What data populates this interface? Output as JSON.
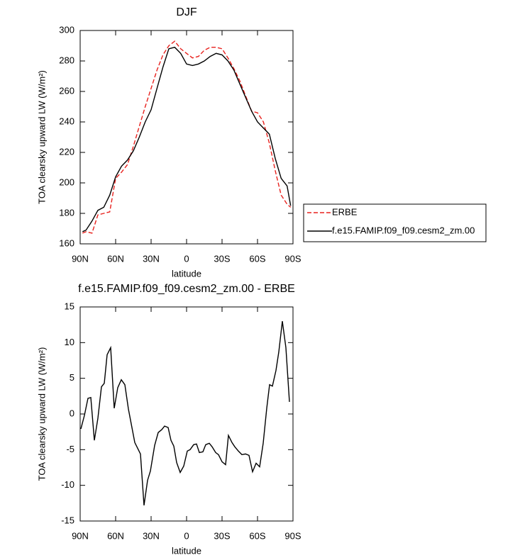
{
  "chart_data": [
    {
      "type": "line",
      "title": "DJF",
      "x_label": "latitude",
      "y_label": "TOA clearsky upward LW (W/m²)",
      "xlim": [
        90,
        -90
      ],
      "xticks": [
        {
          "value": 90,
          "label": "90N"
        },
        {
          "value": 60,
          "label": "60N"
        },
        {
          "value": 30,
          "label": "30N"
        },
        0,
        {
          "value": -30,
          "label": "30S"
        },
        {
          "value": -60,
          "label": "60S"
        },
        {
          "value": -90,
          "label": "90S"
        }
      ],
      "ylim": [
        160,
        300
      ],
      "yticks": [
        160,
        180,
        200,
        220,
        240,
        260,
        280,
        300
      ],
      "x": [
        88,
        85,
        80,
        75,
        70,
        65,
        60,
        55,
        50,
        45,
        40,
        35,
        30,
        25,
        20,
        15,
        10,
        5,
        0,
        -5,
        -10,
        -15,
        -20,
        -25,
        -30,
        -35,
        -40,
        -45,
        -50,
        -55,
        -60,
        -65,
        -70,
        -75,
        -80,
        -85,
        -88
      ],
      "legend": "right",
      "series": [
        {
          "name": "ERBE",
          "color": "#e8211d",
          "dash": true,
          "values": [
            167,
            168,
            167,
            179,
            180,
            181,
            203,
            207,
            212,
            224,
            237,
            250,
            262,
            274,
            284,
            290,
            293,
            288,
            285,
            282,
            283,
            287,
            289,
            289,
            288,
            282,
            275,
            267,
            257,
            247,
            246,
            240,
            226,
            208,
            192,
            186,
            184
          ]
        },
        {
          "name": "f.e15.FAMIP.f09_f09.cesm2_zm.00",
          "color": "#000000",
          "dash": false,
          "values": [
            168,
            169,
            175,
            182,
            184,
            192,
            204,
            211,
            215,
            221,
            230,
            240,
            248,
            262,
            276,
            288,
            289,
            285,
            278,
            277,
            278,
            280,
            283,
            285,
            284,
            280,
            274,
            265,
            256,
            247,
            240,
            236,
            232,
            216,
            203,
            198,
            185
          ]
        }
      ]
    },
    {
      "type": "line",
      "title": "f.e15.FAMIP.f09_f09.cesm2_zm.00 - ERBE",
      "x_label": "latitude",
      "y_label": "TOA clearsky upward LW (W/m²)",
      "xlim": [
        90,
        -90
      ],
      "xticks": [
        {
          "value": 90,
          "label": "90N"
        },
        {
          "value": 60,
          "label": "60N"
        },
        {
          "value": 30,
          "label": "30N"
        },
        0,
        {
          "value": -30,
          "label": "30S"
        },
        {
          "value": -60,
          "label": "60S"
        },
        {
          "value": -90,
          "label": "90S"
        }
      ],
      "ylim": [
        -15,
        15
      ],
      "yticks": [
        -15,
        -10,
        -5,
        0,
        5,
        10,
        15
      ],
      "x": [
        89.4,
        86.4,
        83.4,
        81,
        78,
        75,
        72,
        69.6,
        67.2,
        64.2,
        61.2,
        58.2,
        55.2,
        52.2,
        49.2,
        43.8,
        39,
        36,
        33,
        30.6,
        27,
        24,
        21,
        18.6,
        15.6,
        13.2,
        10.8,
        8.4,
        5.4,
        2.4,
        -0.6,
        -3,
        -6,
        -8.4,
        -10.8,
        -13.8,
        -16.2,
        -19.2,
        -21.6,
        -24.6,
        -27,
        -30,
        -33,
        -35.4,
        -38.4,
        -40.8,
        -43.8,
        -46.8,
        -49.8,
        -52.8,
        -55.8,
        -58.8,
        -61.8,
        -64.8,
        -67.8,
        -70.2,
        -72.6,
        -75.6,
        -78,
        -81,
        -84,
        -87
      ],
      "series": [
        {
          "name": "f.e15.FAMIP.f09_f09.cesm2_zm.00 - ERBE",
          "color": "#000000",
          "dash": false,
          "values": [
            -2.1,
            -0.2,
            2.2,
            2.3,
            -3.7,
            -0.6,
            3.8,
            4.3,
            8.3,
            9.3,
            0.8,
            3.7,
            4.8,
            4.1,
            0.7,
            -4,
            -5.6,
            -12.8,
            -9.3,
            -8,
            -4.4,
            -2.6,
            -2.2,
            -1.7,
            -1.9,
            -3.7,
            -4.5,
            -6.8,
            -8.2,
            -7.3,
            -5.2,
            -5,
            -4.3,
            -4.2,
            -5.4,
            -5.3,
            -4.3,
            -4.1,
            -4.6,
            -5.4,
            -5.7,
            -6.7,
            -7.1,
            -3,
            -4,
            -4.6,
            -5.2,
            -5.7,
            -5.6,
            -5.8,
            -8.1,
            -6.9,
            -7.4,
            -4.1,
            0.8,
            4.1,
            3.9,
            6.1,
            8.7,
            13,
            9.3,
            1.7
          ]
        }
      ]
    }
  ]
}
